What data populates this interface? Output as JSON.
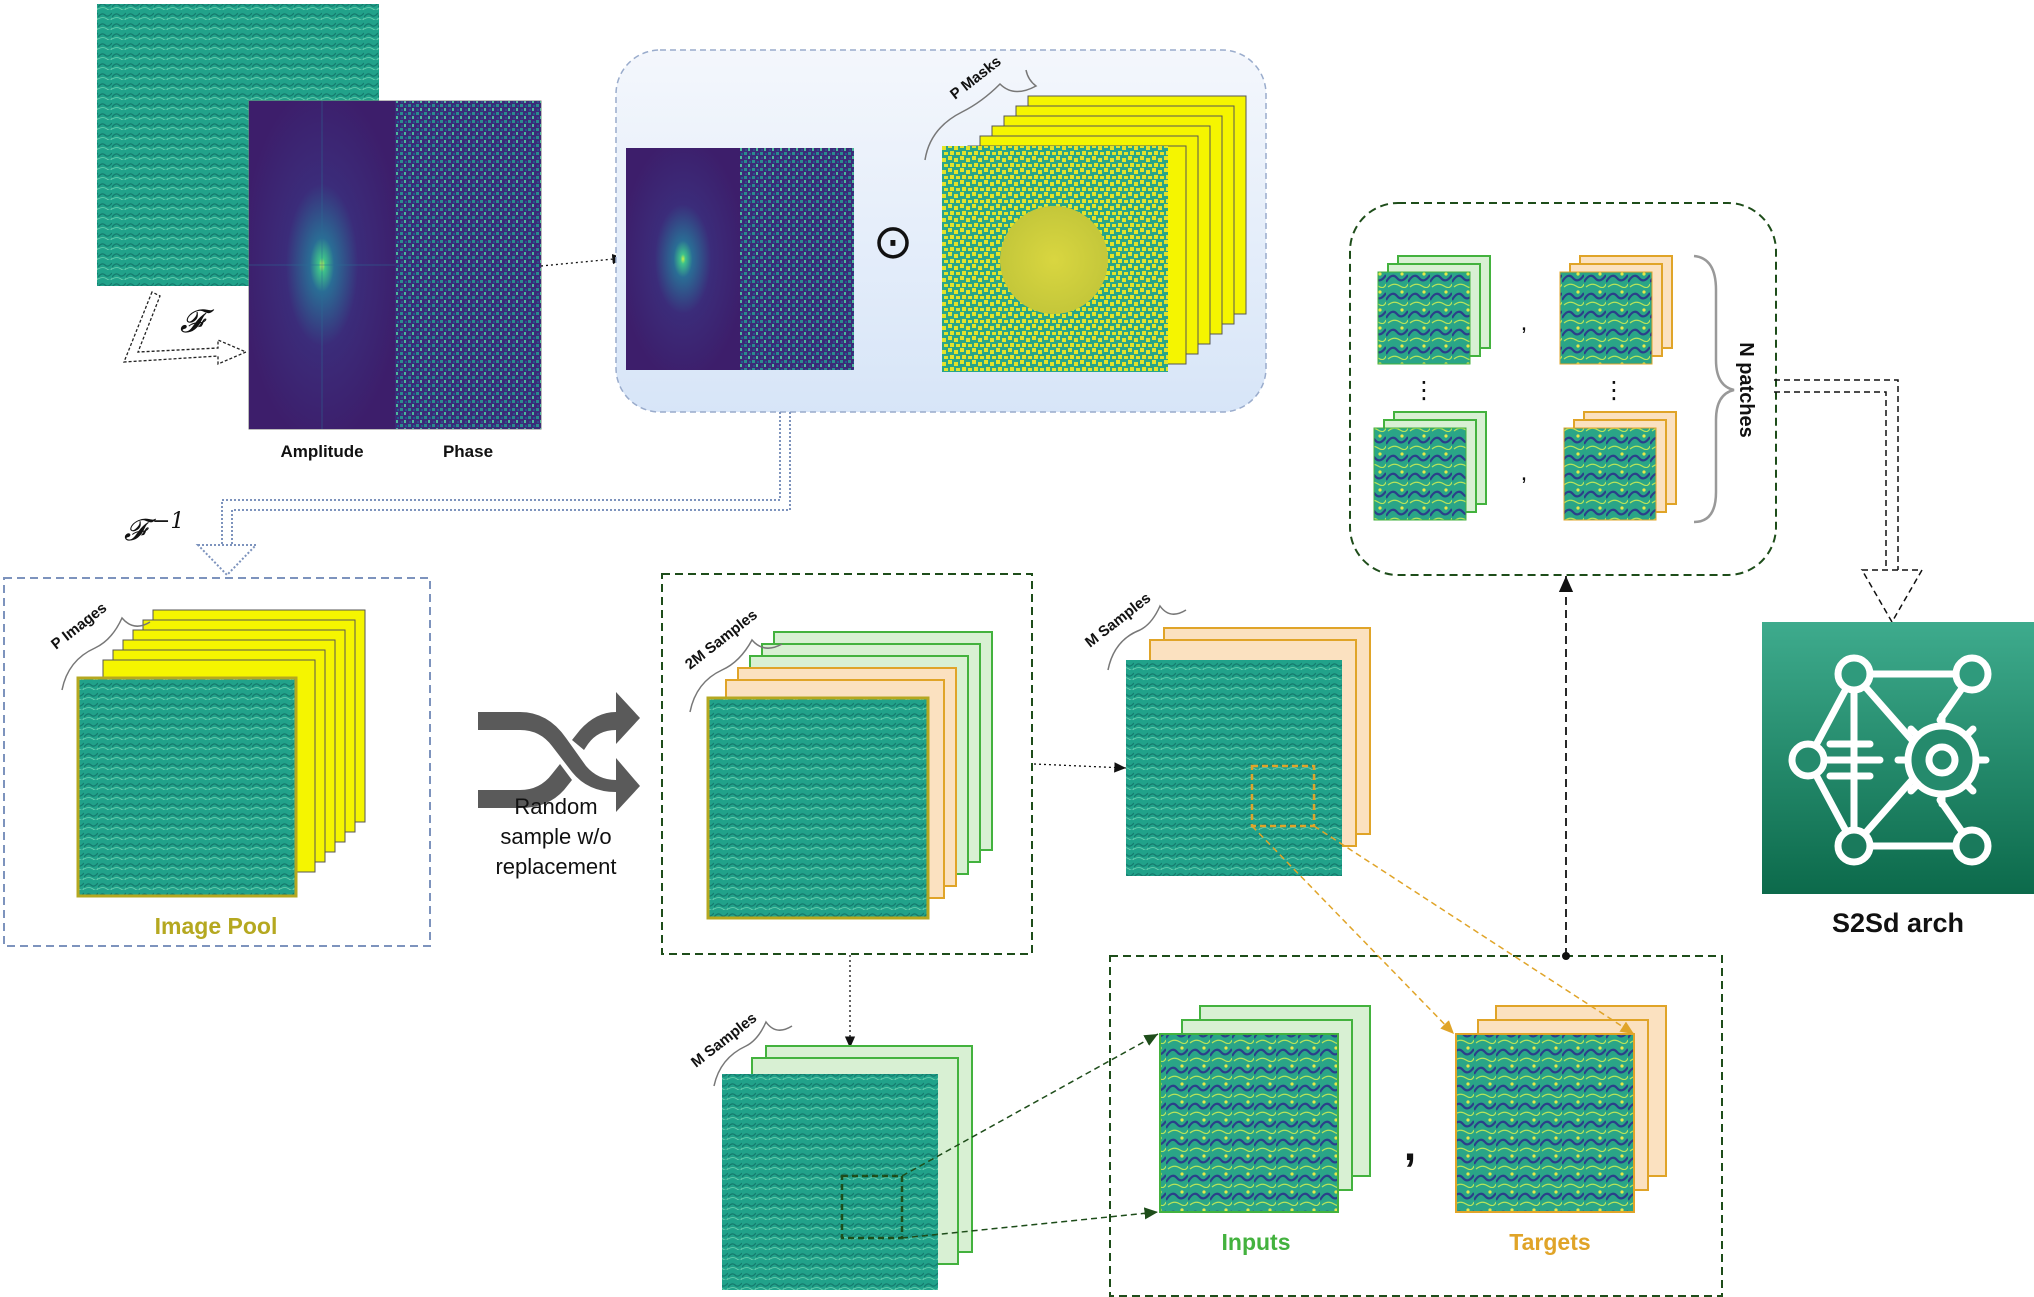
{
  "labels": {
    "fourier": "𝓕",
    "inverse_fourier_base": "𝓕",
    "inverse_fourier_exp": "−1",
    "amplitude": "Amplitude",
    "phase": "Phase",
    "p_masks": "P Masks",
    "hadamard": "⊙",
    "p_images": "P Images",
    "image_pool": "Image Pool",
    "random_sample_line1": "Random",
    "random_sample_line2": "sample w/o",
    "random_sample_line3": "replacement",
    "samples_2m": "2M Samples",
    "samples_m_orange": "M Samples",
    "samples_m_green": "M Samples",
    "n_patches": "N patches",
    "comma": ",",
    "dots": "⋮",
    "inputs": "Inputs",
    "targets": "Targets",
    "arch": "S2Sd arch"
  },
  "colors": {
    "texture": "#22a48c",
    "texture_dark": "#1a7f7a",
    "spectrum": "#3a1f6e",
    "mask_yellow": "#f5f500",
    "green_frame": "#43b23e",
    "green_fill": "#d8f0d3",
    "orange_frame": "#e0a428",
    "orange_fill": "#fbe1c0",
    "image_pool_text": "#b5a820",
    "inputs_text": "#43b23e",
    "targets_text": "#e0a428",
    "dashed_blue": "#7d93bd",
    "dashed_green": "#1e4d1a",
    "arch_top": "#3aa88a",
    "arch_bottom": "#0e6b4c"
  }
}
